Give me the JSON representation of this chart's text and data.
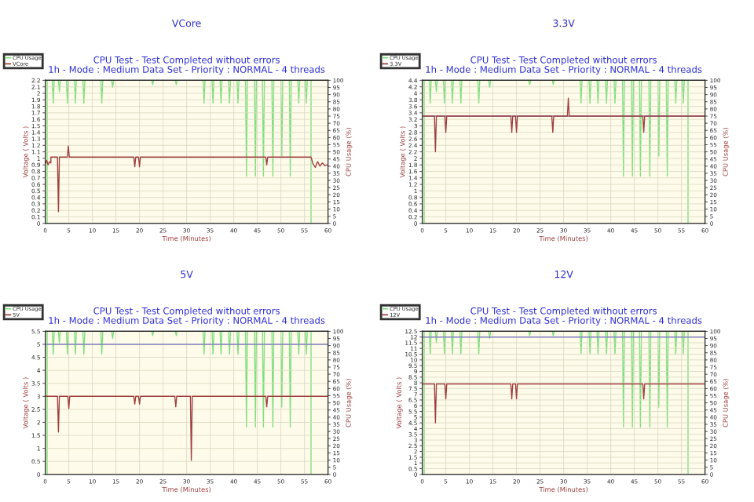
{
  "chart_data": [
    {
      "type": "line",
      "title": "VCore",
      "subtitle": "CPU Test - Test Completed without errors\n1h - Mode : Medium Data Set - Priority : NORMAL - 4 threads",
      "xlabel": "Time (Minutes)",
      "ylabel": "Voltage ( Volts )",
      "y2label": "CPU Usage (%)",
      "legend": "top left",
      "grid": true,
      "xlim": [
        0,
        60
      ],
      "xticks": [
        0,
        5,
        10,
        15,
        20,
        25,
        30,
        35,
        40,
        45,
        50,
        55,
        60
      ],
      "ylim": [
        0,
        2.2
      ],
      "yticks": [
        0,
        0.1,
        0.2,
        0.3,
        0.4,
        0.5,
        0.6,
        0.7,
        0.8,
        0.9,
        1,
        1.1,
        1.2,
        1.3,
        1.4,
        1.5,
        1.6,
        1.7,
        1.8,
        1.9,
        2,
        2.1,
        2.2
      ],
      "y2lim": [
        0,
        100
      ],
      "y2ticks": [
        0,
        5,
        10,
        15,
        20,
        25,
        30,
        35,
        40,
        45,
        50,
        55,
        60,
        65,
        70,
        75,
        80,
        85,
        90,
        95,
        100
      ],
      "series": [
        {
          "name": "CPU Usage",
          "axis": "y2",
          "color": "#80e080",
          "x": [
            0,
            0.4,
            0.4,
            1.5,
            1.7,
            1.9,
            2.8,
            3.0,
            3.2,
            4.5,
            4.7,
            4.9,
            6.2,
            6.4,
            6.6,
            8.0,
            8.2,
            8.4,
            11.8,
            12.0,
            12.2,
            14.1,
            14.3,
            14.5,
            22.6,
            22.8,
            23.0,
            27.6,
            27.8,
            28.0,
            33.5,
            33.7,
            33.9,
            35.4,
            35.6,
            35.8,
            37.1,
            37.3,
            37.5,
            38.9,
            39.1,
            39.3,
            40.7,
            40.9,
            41.1,
            42.5,
            42.7,
            42.9,
            44.4,
            44.6,
            44.8,
            46.1,
            46.3,
            46.5,
            48.1,
            48.3,
            48.5,
            50.0,
            50.2,
            50.4,
            51.8,
            52.0,
            52.2,
            53.6,
            53.8,
            54.0,
            55.2,
            55.4,
            55.6,
            56.4,
            56.4
          ],
          "values": [
            0,
            0,
            100,
            100,
            84,
            100,
            100,
            92,
            100,
            100,
            84,
            100,
            100,
            84,
            100,
            100,
            84,
            100,
            100,
            84,
            100,
            100,
            95,
            100,
            100,
            97,
            100,
            100,
            97,
            100,
            100,
            84,
            100,
            100,
            84,
            100,
            100,
            84,
            100,
            100,
            84,
            100,
            100,
            84,
            100,
            100,
            33,
            100,
            100,
            33,
            100,
            100,
            33,
            100,
            100,
            33,
            100,
            100,
            47,
            100,
            100,
            33,
            100,
            100,
            84,
            100,
            100,
            84,
            100,
            100,
            0
          ]
        },
        {
          "name": "VCore",
          "color": "#a04040",
          "x": [
            0,
            0.3,
            0.6,
            0.9,
            1.2,
            1.2,
            2.6,
            2.8,
            3.0,
            4.7,
            4.9,
            5.1,
            18.8,
            19.0,
            19.2,
            19.8,
            20.0,
            20.2,
            46.8,
            47.0,
            47.2,
            56.4,
            56.8,
            57.3,
            57.8,
            58.3,
            58.8,
            59.3,
            60
          ],
          "values": [
            0.92,
            0.97,
            0.9,
            0.95,
            0.93,
            1.02,
            1.02,
            0.18,
            1.02,
            1.02,
            1.19,
            1.02,
            1.02,
            0.87,
            1.02,
            1.02,
            0.87,
            1.02,
            1.02,
            0.9,
            1.02,
            1.02,
            0.92,
            0.86,
            0.95,
            0.88,
            0.93,
            0.89,
            0.9
          ]
        }
      ]
    },
    {
      "type": "line",
      "title": "3.3V",
      "subtitle": "CPU Test - Test Completed without errors\n1h - Mode : Medium Data Set - Priority : NORMAL - 4 threads",
      "xlabel": "Time (Minutes)",
      "ylabel": "Voltage ( Volts )",
      "y2label": "CPU Usage (%)",
      "legend": "top left",
      "grid": true,
      "xlim": [
        0,
        60
      ],
      "xticks": [
        0,
        5,
        10,
        15,
        20,
        25,
        30,
        35,
        40,
        45,
        50,
        55,
        60
      ],
      "ylim": [
        0,
        4.4
      ],
      "yticks": [
        0,
        0.2,
        0.4,
        0.6,
        0.8,
        1,
        1.2,
        1.4,
        1.6,
        1.8,
        2,
        2.2,
        2.4,
        2.6,
        2.8,
        3,
        3.2,
        3.4,
        3.6,
        3.8,
        4,
        4.2,
        4.4
      ],
      "y2lim": [
        0,
        100
      ],
      "y2ticks": [
        0,
        5,
        10,
        15,
        20,
        25,
        30,
        35,
        40,
        45,
        50,
        55,
        60,
        65,
        70,
        75,
        80,
        85,
        90,
        95,
        100
      ],
      "ref_lines": [
        {
          "axis": "y",
          "value": 3.3,
          "color": "#8080c0"
        }
      ],
      "series": [
        {
          "name": "CPU Usage",
          "axis": "y2",
          "color": "#80e080",
          "x": [
            0,
            0.4,
            0.4,
            1.5,
            1.7,
            1.9,
            2.8,
            3.0,
            3.2,
            4.5,
            4.7,
            4.9,
            6.2,
            6.4,
            6.6,
            8.0,
            8.2,
            8.4,
            11.8,
            12.0,
            12.2,
            14.1,
            14.3,
            14.5,
            22.6,
            22.8,
            23.0,
            27.6,
            27.8,
            28.0,
            33.5,
            33.7,
            33.9,
            35.4,
            35.6,
            35.8,
            37.1,
            37.3,
            37.5,
            38.9,
            39.1,
            39.3,
            40.7,
            40.9,
            41.1,
            42.5,
            42.7,
            42.9,
            44.4,
            44.6,
            44.8,
            46.1,
            46.3,
            46.5,
            48.1,
            48.3,
            48.5,
            50.0,
            50.2,
            50.4,
            51.8,
            52.0,
            52.2,
            53.6,
            53.8,
            54.0,
            55.2,
            55.4,
            55.6,
            56.4,
            56.4
          ],
          "values": [
            0,
            0,
            100,
            100,
            84,
            100,
            100,
            92,
            100,
            100,
            84,
            100,
            100,
            84,
            100,
            100,
            84,
            100,
            100,
            84,
            100,
            100,
            95,
            100,
            100,
            97,
            100,
            100,
            97,
            100,
            100,
            84,
            100,
            100,
            84,
            100,
            100,
            84,
            100,
            100,
            84,
            100,
            100,
            84,
            100,
            100,
            33,
            100,
            100,
            33,
            100,
            100,
            33,
            100,
            100,
            33,
            100,
            100,
            47,
            100,
            100,
            33,
            100,
            100,
            84,
            100,
            100,
            84,
            100,
            100,
            0
          ]
        },
        {
          "name": "3.3V",
          "color": "#a04040",
          "x": [
            0,
            2.6,
            2.8,
            3.0,
            4.8,
            5.0,
            5.2,
            18.8,
            19.0,
            19.2,
            19.8,
            20.0,
            20.2,
            27.5,
            27.7,
            27.9,
            30.8,
            31.0,
            31.2,
            46.8,
            47.0,
            47.2,
            60
          ],
          "values": [
            3.3,
            3.3,
            2.2,
            3.3,
            3.3,
            2.8,
            3.3,
            3.3,
            2.8,
            3.3,
            3.3,
            2.8,
            3.3,
            3.3,
            2.8,
            3.3,
            3.3,
            3.85,
            3.3,
            3.3,
            2.8,
            3.3,
            3.3
          ]
        }
      ]
    },
    {
      "type": "line",
      "title": "5V",
      "subtitle": "CPU Test - Test Completed without errors\n1h - Mode : Medium Data Set - Priority : NORMAL - 4 threads",
      "xlabel": "Time (Minutes)",
      "ylabel": "Voltage ( Volts )",
      "y2label": "CPU Usage (%)",
      "legend": "top left",
      "grid": true,
      "xlim": [
        0,
        60
      ],
      "xticks": [
        0,
        5,
        10,
        15,
        20,
        25,
        30,
        35,
        40,
        45,
        50,
        55,
        60
      ],
      "ylim": [
        0,
        5.5
      ],
      "yticks": [
        0,
        0.5,
        1,
        1.5,
        2,
        2.5,
        3,
        3.5,
        4,
        4.5,
        5,
        5.5
      ],
      "y2lim": [
        0,
        100
      ],
      "y2ticks": [
        0,
        5,
        10,
        15,
        20,
        25,
        30,
        35,
        40,
        45,
        50,
        55,
        60,
        65,
        70,
        75,
        80,
        85,
        90,
        95,
        100
      ],
      "ref_lines": [
        {
          "axis": "y",
          "value": 5,
          "color": "#8080c0"
        }
      ],
      "series": [
        {
          "name": "CPU Usage",
          "axis": "y2",
          "color": "#80e080",
          "x": [
            0,
            0.4,
            0.4,
            1.5,
            1.7,
            1.9,
            2.8,
            3.0,
            3.2,
            4.5,
            4.7,
            4.9,
            6.2,
            6.4,
            6.6,
            8.0,
            8.2,
            8.4,
            11.8,
            12.0,
            12.2,
            14.1,
            14.3,
            14.5,
            22.6,
            22.8,
            23.0,
            27.6,
            27.8,
            28.0,
            33.5,
            33.7,
            33.9,
            35.4,
            35.6,
            35.8,
            37.1,
            37.3,
            37.5,
            38.9,
            39.1,
            39.3,
            40.7,
            40.9,
            41.1,
            42.5,
            42.7,
            42.9,
            44.4,
            44.6,
            44.8,
            46.1,
            46.3,
            46.5,
            48.1,
            48.3,
            48.5,
            50.0,
            50.2,
            50.4,
            51.8,
            52.0,
            52.2,
            53.6,
            53.8,
            54.0,
            55.2,
            55.4,
            55.6,
            56.4,
            56.4
          ],
          "values": [
            0,
            0,
            100,
            100,
            84,
            100,
            100,
            92,
            100,
            100,
            84,
            100,
            100,
            84,
            100,
            100,
            84,
            100,
            100,
            84,
            100,
            100,
            95,
            100,
            100,
            97,
            100,
            100,
            97,
            100,
            100,
            84,
            100,
            100,
            84,
            100,
            100,
            84,
            100,
            100,
            84,
            100,
            100,
            84,
            100,
            100,
            33,
            100,
            100,
            33,
            100,
            100,
            33,
            100,
            100,
            33,
            100,
            100,
            47,
            100,
            100,
            33,
            100,
            100,
            84,
            100,
            100,
            84,
            100,
            100,
            0
          ]
        },
        {
          "name": "5V",
          "color": "#a04040",
          "x": [
            0,
            2.6,
            2.8,
            3.0,
            4.8,
            5.0,
            5.2,
            18.8,
            19.0,
            19.2,
            19.8,
            20.0,
            20.2,
            27.5,
            27.7,
            27.9,
            30.8,
            31.0,
            31.2,
            46.8,
            47.0,
            47.2,
            60
          ],
          "values": [
            3.0,
            3.0,
            1.63,
            3.0,
            3.0,
            2.53,
            3.0,
            3.0,
            2.7,
            3.0,
            3.0,
            2.7,
            3.0,
            3.0,
            2.6,
            3.0,
            3.0,
            0.54,
            3.0,
            3.0,
            2.6,
            3.0,
            3.0
          ]
        }
      ]
    },
    {
      "type": "line",
      "title": "12V",
      "subtitle": "CPU Test - Test Completed without errors\n1h - Mode : Medium Data Set - Priority : NORMAL - 4 threads",
      "xlabel": "Time (Minutes)",
      "ylabel": "Voltage ( Volts )",
      "y2label": "CPU Usage (%)",
      "legend": "top left",
      "grid": true,
      "xlim": [
        0,
        60
      ],
      "xticks": [
        0,
        5,
        10,
        15,
        20,
        25,
        30,
        35,
        40,
        45,
        50,
        55,
        60
      ],
      "ylim": [
        0,
        12.5
      ],
      "yticks": [
        0,
        0.5,
        1,
        1.5,
        2,
        2.5,
        3,
        3.5,
        4,
        4.5,
        5,
        5.5,
        6,
        6.5,
        7,
        7.5,
        8,
        8.5,
        9,
        9.5,
        10,
        10.5,
        11,
        11.5,
        12,
        12.5
      ],
      "y2lim": [
        0,
        100
      ],
      "y2ticks": [
        0,
        5,
        10,
        15,
        20,
        25,
        30,
        35,
        40,
        45,
        50,
        55,
        60,
        65,
        70,
        75,
        80,
        85,
        90,
        95,
        100
      ],
      "ref_lines": [
        {
          "axis": "y",
          "value": 12,
          "color": "#8080c0"
        }
      ],
      "series": [
        {
          "name": "CPU Usage",
          "axis": "y2",
          "color": "#80e080",
          "x": [
            0,
            0.4,
            0.4,
            1.5,
            1.7,
            1.9,
            2.8,
            3.0,
            3.2,
            4.5,
            4.7,
            4.9,
            6.2,
            6.4,
            6.6,
            8.0,
            8.2,
            8.4,
            11.8,
            12.0,
            12.2,
            14.1,
            14.3,
            14.5,
            22.6,
            22.8,
            23.0,
            27.6,
            27.8,
            28.0,
            33.5,
            33.7,
            33.9,
            35.4,
            35.6,
            35.8,
            37.1,
            37.3,
            37.5,
            38.9,
            39.1,
            39.3,
            40.7,
            40.9,
            41.1,
            42.5,
            42.7,
            42.9,
            44.4,
            44.6,
            44.8,
            46.1,
            46.3,
            46.5,
            48.1,
            48.3,
            48.5,
            50.0,
            50.2,
            50.4,
            51.8,
            52.0,
            52.2,
            53.6,
            53.8,
            54.0,
            55.2,
            55.4,
            55.6,
            56.4,
            56.4
          ],
          "values": [
            0,
            0,
            100,
            100,
            84,
            100,
            100,
            92,
            100,
            100,
            84,
            100,
            100,
            84,
            100,
            100,
            84,
            100,
            100,
            84,
            100,
            100,
            95,
            100,
            100,
            97,
            100,
            100,
            97,
            100,
            100,
            84,
            100,
            100,
            84,
            100,
            100,
            84,
            100,
            100,
            84,
            100,
            100,
            84,
            100,
            100,
            33,
            100,
            100,
            33,
            100,
            100,
            33,
            100,
            100,
            33,
            100,
            100,
            47,
            100,
            100,
            33,
            100,
            100,
            84,
            100,
            100,
            84,
            100,
            100,
            0
          ]
        },
        {
          "name": "12V",
          "color": "#a04040",
          "x": [
            0,
            2.6,
            2.8,
            3.0,
            4.8,
            5.0,
            5.2,
            18.8,
            19.0,
            19.2,
            19.8,
            20.0,
            20.2,
            46.8,
            47.0,
            47.2,
            60
          ],
          "values": [
            7.9,
            7.9,
            4.5,
            7.9,
            7.9,
            6.6,
            7.9,
            7.9,
            6.6,
            7.9,
            7.9,
            6.6,
            7.9,
            7.9,
            6.6,
            7.9,
            7.9
          ]
        }
      ]
    }
  ]
}
